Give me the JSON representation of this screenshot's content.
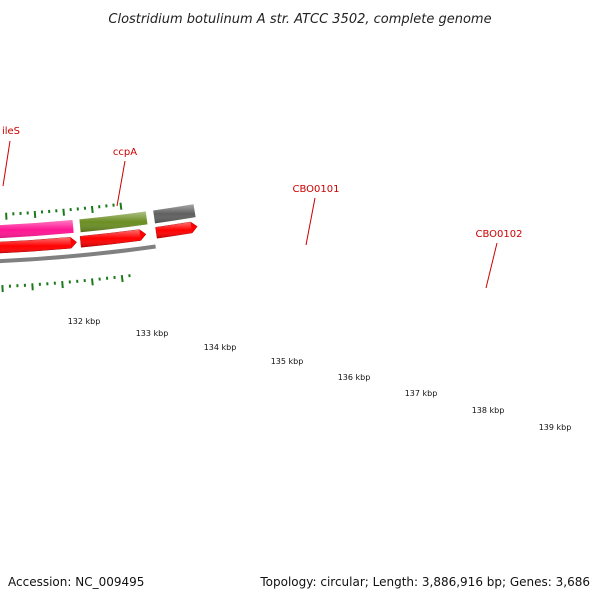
{
  "title": "Clostridium botulinum A str. ATCC 3502, complete genome",
  "footer": {
    "accession": "Accession: NC_009495",
    "summary": "Topology: circular; Length: 3,886,916 bp; Genes: 3,686"
  },
  "colors": {
    "label": "#cc0000",
    "backbone": "#808080",
    "tick": "#1a7a1a",
    "cds_strand": "#ff0000"
  },
  "genes": [
    {
      "name": "ileS",
      "color": "#f08080"
    },
    {
      "name": "ccpA",
      "color": "#ff8c00"
    },
    {
      "name": "CBO0101",
      "color": "#ff1493"
    },
    {
      "name": "CBO0102",
      "color": "#6b8e23"
    },
    {
      "name": "",
      "color": "#606060"
    }
  ],
  "kbp_labels": [
    "132 kbp",
    "133 kbp",
    "134 kbp",
    "135 kbp",
    "136 kbp",
    "137 kbp",
    "138 kbp",
    "139 kbp"
  ]
}
